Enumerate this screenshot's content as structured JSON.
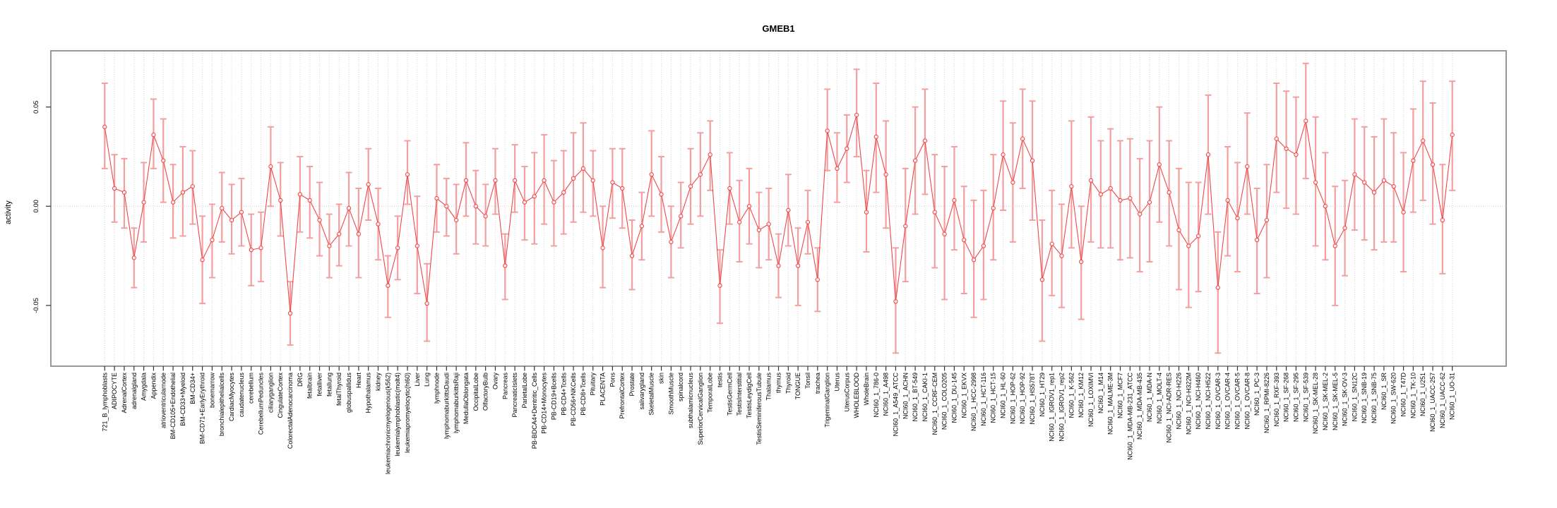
{
  "chart_data": {
    "type": "line",
    "subtype": "error-bar-profile",
    "title": "GMEB1",
    "xlabel": "",
    "ylabel": "activity",
    "ylim": [
      -0.081,
      0.078
    ],
    "yticks": [
      {
        "label": "0.05",
        "value": 0.05
      },
      {
        "label": "0.00",
        "value": 0.0
      },
      {
        "label": "-0.05",
        "value": -0.05
      }
    ],
    "legend": "none",
    "grid": "vertical dotted gridline per category; dotted horizontal zero line",
    "colors": {
      "line": "#ee4747",
      "marker": "#ee4747",
      "error_bar": "#f49f9f",
      "grid": "#d6d6d6",
      "zero_line": "#cfcfcf",
      "frame": "#7f7f7f",
      "tick": "#333333",
      "text": "#000000",
      "background": "#ffffff"
    },
    "points": [
      {
        "label": "721_B_lymphoblasts",
        "value": 0.04,
        "lo": 0.019,
        "hi": 0.062
      },
      {
        "label": "ADIPOCYTE",
        "value": 0.009,
        "lo": -0.008,
        "hi": 0.026
      },
      {
        "label": "AdrenalCortex",
        "value": 0.007,
        "lo": -0.011,
        "hi": 0.024
      },
      {
        "label": "adrenalgland",
        "value": -0.026,
        "lo": -0.041,
        "hi": -0.011
      },
      {
        "label": "Amygdala",
        "value": 0.002,
        "lo": -0.018,
        "hi": 0.022
      },
      {
        "label": "Appendix",
        "value": 0.036,
        "lo": 0.019,
        "hi": 0.054
      },
      {
        "label": "atrioventricularnode",
        "value": 0.023,
        "lo": 0.002,
        "hi": 0.044
      },
      {
        "label": "BM-CD105+Endothelial",
        "value": 0.002,
        "lo": -0.016,
        "hi": 0.021
      },
      {
        "label": "BM-CD33+Myeloid",
        "value": 0.007,
        "lo": -0.015,
        "hi": 0.03
      },
      {
        "label": "BM-CD34+",
        "value": 0.01,
        "lo": -0.009,
        "hi": 0.028
      },
      {
        "label": "BM-CD71+EarlyErythroid",
        "value": -0.027,
        "lo": -0.049,
        "hi": -0.005
      },
      {
        "label": "bonemarrow",
        "value": -0.017,
        "lo": -0.036,
        "hi": 0.001
      },
      {
        "label": "bronchialepithelialcells",
        "value": -0.001,
        "lo": -0.018,
        "hi": 0.017
      },
      {
        "label": "CardiacMyocytes",
        "value": -0.007,
        "lo": -0.024,
        "hi": 0.011
      },
      {
        "label": "caudatenucleus",
        "value": -0.003,
        "lo": -0.02,
        "hi": 0.014
      },
      {
        "label": "cerebellum",
        "value": -0.022,
        "lo": -0.04,
        "hi": -0.004
      },
      {
        "label": "CerebellumPeduncles",
        "value": -0.021,
        "lo": -0.038,
        "hi": -0.003
      },
      {
        "label": "ciliaryganglion",
        "value": 0.02,
        "lo": 0.0,
        "hi": 0.04
      },
      {
        "label": "CingulateCortex",
        "value": 0.003,
        "lo": -0.015,
        "hi": 0.022
      },
      {
        "label": "ColorectalAdenocarcinoma",
        "value": -0.054,
        "lo": -0.07,
        "hi": -0.038
      },
      {
        "label": "DRG",
        "value": 0.006,
        "lo": -0.013,
        "hi": 0.025
      },
      {
        "label": "fetalbrain",
        "value": 0.003,
        "lo": -0.016,
        "hi": 0.02
      },
      {
        "label": "fetalliver",
        "value": -0.007,
        "lo": -0.025,
        "hi": 0.012
      },
      {
        "label": "fetallung",
        "value": -0.02,
        "lo": -0.036,
        "hi": -0.004
      },
      {
        "label": "fetalThyroid",
        "value": -0.014,
        "lo": -0.03,
        "hi": 0.001
      },
      {
        "label": "globuspallidus",
        "value": -0.001,
        "lo": -0.02,
        "hi": 0.017
      },
      {
        "label": "Heart",
        "value": -0.014,
        "lo": -0.036,
        "hi": 0.009
      },
      {
        "label": "Hypothalamus",
        "value": 0.011,
        "lo": -0.007,
        "hi": 0.029
      },
      {
        "label": "kidney",
        "value": -0.009,
        "lo": -0.027,
        "hi": 0.009
      },
      {
        "label": "leukemiachronicmyelogenous(k562)",
        "value": -0.04,
        "lo": -0.056,
        "hi": -0.025
      },
      {
        "label": "leukemialymphoblastic(molt4)",
        "value": -0.021,
        "lo": -0.037,
        "hi": -0.005
      },
      {
        "label": "leukemiapromyelocytic(hl60)",
        "value": 0.016,
        "lo": 0.001,
        "hi": 0.033
      },
      {
        "label": "Liver",
        "value": -0.02,
        "lo": -0.044,
        "hi": 0.005
      },
      {
        "label": "Lung",
        "value": -0.049,
        "lo": -0.068,
        "hi": -0.029
      },
      {
        "label": "lymphnode",
        "value": 0.004,
        "lo": -0.013,
        "hi": 0.021
      },
      {
        "label": "lymphomaburkittsDaudi",
        "value": 0.0,
        "lo": -0.015,
        "hi": 0.014
      },
      {
        "label": "lymphomaburkittsRaji",
        "value": -0.007,
        "lo": -0.024,
        "hi": 0.011
      },
      {
        "label": "MedullaOblongata",
        "value": 0.013,
        "lo": -0.005,
        "hi": 0.032
      },
      {
        "label": "OccipitalLobe",
        "value": 0.0,
        "lo": -0.019,
        "hi": 0.018
      },
      {
        "label": "OlfactoryBulb",
        "value": -0.005,
        "lo": -0.02,
        "hi": 0.011
      },
      {
        "label": "Ovary",
        "value": 0.013,
        "lo": -0.004,
        "hi": 0.029
      },
      {
        "label": "Pancreas",
        "value": -0.03,
        "lo": -0.047,
        "hi": -0.014
      },
      {
        "label": "PancreaticIslets",
        "value": 0.013,
        "lo": -0.003,
        "hi": 0.031
      },
      {
        "label": "ParietalLobe",
        "value": 0.002,
        "lo": -0.017,
        "hi": 0.02
      },
      {
        "label": "PB-BDCA4+Dentritic_Cells",
        "value": 0.005,
        "lo": -0.019,
        "hi": 0.027
      },
      {
        "label": "PB-CD14+Monocytes",
        "value": 0.013,
        "lo": -0.009,
        "hi": 0.036
      },
      {
        "label": "PB-CD19+Bcells",
        "value": 0.002,
        "lo": -0.02,
        "hi": 0.023
      },
      {
        "label": "PB-CD4+Tcells",
        "value": 0.007,
        "lo": -0.014,
        "hi": 0.028
      },
      {
        "label": "PB-CD56+NKCells",
        "value": 0.014,
        "lo": -0.008,
        "hi": 0.037
      },
      {
        "label": "PB-CD8+Tcells",
        "value": 0.019,
        "lo": -0.003,
        "hi": 0.042
      },
      {
        "label": "Pituitary",
        "value": 0.013,
        "lo": -0.005,
        "hi": 0.028
      },
      {
        "label": "PLACENTA",
        "value": -0.021,
        "lo": -0.041,
        "hi": 0.0
      },
      {
        "label": "Pons",
        "value": 0.012,
        "lo": -0.006,
        "hi": 0.029
      },
      {
        "label": "PrefrontalCortex",
        "value": 0.009,
        "lo": -0.011,
        "hi": 0.029
      },
      {
        "label": "Prostate",
        "value": -0.025,
        "lo": -0.042,
        "hi": -0.007
      },
      {
        "label": "salivarygland",
        "value": -0.01,
        "lo": -0.027,
        "hi": 0.007
      },
      {
        "label": "SkeletalMuscle",
        "value": 0.016,
        "lo": -0.005,
        "hi": 0.038
      },
      {
        "label": "skin",
        "value": 0.006,
        "lo": -0.013,
        "hi": 0.025
      },
      {
        "label": "SmoothMuscle",
        "value": -0.018,
        "lo": -0.036,
        "hi": 0.0
      },
      {
        "label": "spinalcord",
        "value": -0.005,
        "lo": -0.021,
        "hi": 0.012
      },
      {
        "label": "subthalamicnucleus",
        "value": 0.01,
        "lo": -0.009,
        "hi": 0.029
      },
      {
        "label": "SuperiorCervicalGanglion",
        "value": 0.016,
        "lo": -0.005,
        "hi": 0.037
      },
      {
        "label": "TemporalLobe",
        "value": 0.026,
        "lo": 0.008,
        "hi": 0.043
      },
      {
        "label": "testis",
        "value": -0.04,
        "lo": -0.059,
        "hi": -0.022
      },
      {
        "label": "TestisGermCell",
        "value": 0.009,
        "lo": -0.009,
        "hi": 0.027
      },
      {
        "label": "TestisInterstitial",
        "value": -0.008,
        "lo": -0.028,
        "hi": 0.013
      },
      {
        "label": "TestisLeydigCell",
        "value": 0.0,
        "lo": -0.019,
        "hi": 0.019
      },
      {
        "label": "TestisSeminiferousTubule",
        "value": -0.012,
        "lo": -0.031,
        "hi": 0.007
      },
      {
        "label": "Thalamus",
        "value": -0.009,
        "lo": -0.027,
        "hi": 0.009
      },
      {
        "label": "thymus",
        "value": -0.03,
        "lo": -0.046,
        "hi": -0.014
      },
      {
        "label": "Thyroid",
        "value": -0.002,
        "lo": -0.02,
        "hi": 0.016
      },
      {
        "label": "TONGUE",
        "value": -0.03,
        "lo": -0.05,
        "hi": -0.011
      },
      {
        "label": "Tonsil",
        "value": -0.008,
        "lo": -0.024,
        "hi": 0.008
      },
      {
        "label": "trachea",
        "value": -0.037,
        "lo": -0.053,
        "hi": -0.021
      },
      {
        "label": "TrigeminalGanglion",
        "value": 0.038,
        "lo": 0.018,
        "hi": 0.059
      },
      {
        "label": "Uterus",
        "value": 0.019,
        "lo": 0.002,
        "hi": 0.037
      },
      {
        "label": "UterusCorpus",
        "value": 0.029,
        "lo": 0.012,
        "hi": 0.046
      },
      {
        "label": "WHOLEBLOOD",
        "value": 0.046,
        "lo": 0.025,
        "hi": 0.069
      },
      {
        "label": "WholeBrain",
        "value": -0.003,
        "lo": -0.023,
        "hi": 0.018
      },
      {
        "label": "NCI60_1_786-0",
        "value": 0.035,
        "lo": 0.007,
        "hi": 0.062
      },
      {
        "label": "NCI60_1_A498",
        "value": 0.016,
        "lo": -0.011,
        "hi": 0.043
      },
      {
        "label": "NCI60_1_A549_ATCC",
        "value": -0.048,
        "lo": -0.074,
        "hi": -0.021
      },
      {
        "label": "NCI60_1_ACHN",
        "value": -0.01,
        "lo": -0.038,
        "hi": 0.019
      },
      {
        "label": "NCI60_1_BT-549",
        "value": 0.023,
        "lo": -0.004,
        "hi": 0.05
      },
      {
        "label": "NCI60_1_CAKI-1",
        "value": 0.033,
        "lo": 0.006,
        "hi": 0.059
      },
      {
        "label": "NCI60_1_CCRF-CEM",
        "value": -0.003,
        "lo": -0.031,
        "hi": 0.026
      },
      {
        "label": "NCI60_1_COLO205",
        "value": -0.014,
        "lo": -0.047,
        "hi": 0.02
      },
      {
        "label": "NCI60_1_DU-145",
        "value": 0.003,
        "lo": -0.022,
        "hi": 0.03
      },
      {
        "label": "NCI60_1_EKVX",
        "value": -0.017,
        "lo": -0.044,
        "hi": 0.01
      },
      {
        "label": "NCI60_1_HCC-2998",
        "value": -0.027,
        "lo": -0.056,
        "hi": 0.003
      },
      {
        "label": "NCI60_1_HCT-116",
        "value": -0.02,
        "lo": -0.047,
        "hi": 0.008
      },
      {
        "label": "NCI60_1_HCT-15",
        "value": -0.001,
        "lo": -0.027,
        "hi": 0.026
      },
      {
        "label": "NCI60_1_HL-60",
        "value": 0.026,
        "lo": -0.002,
        "hi": 0.053
      },
      {
        "label": "NCI60_1_HOP-62",
        "value": 0.012,
        "lo": -0.018,
        "hi": 0.042
      },
      {
        "label": "NCI60_1_HOP-92",
        "value": 0.034,
        "lo": 0.009,
        "hi": 0.059
      },
      {
        "label": "NCI60_1_HS578T",
        "value": 0.023,
        "lo": -0.007,
        "hi": 0.053
      },
      {
        "label": "NCI60_1_HT29",
        "value": -0.037,
        "lo": -0.068,
        "hi": -0.007
      },
      {
        "label": "NCI60_1_IGROV1_rep1",
        "value": -0.019,
        "lo": -0.045,
        "hi": 0.008
      },
      {
        "label": "NCI60_1_IGROV1_rep2",
        "value": -0.025,
        "lo": -0.051,
        "hi": 0.001
      },
      {
        "label": "NCI60_1_K-562",
        "value": 0.01,
        "lo": -0.021,
        "hi": 0.043
      },
      {
        "label": "NCI60_1_KM12",
        "value": -0.028,
        "lo": -0.057,
        "hi": 0.0
      },
      {
        "label": "NCI60_1_LOXIMVI",
        "value": 0.013,
        "lo": -0.018,
        "hi": 0.045
      },
      {
        "label": "NCI60_1_M14",
        "value": 0.006,
        "lo": -0.021,
        "hi": 0.033
      },
      {
        "label": "NCI60_1_MALME-3M",
        "value": 0.009,
        "lo": -0.021,
        "hi": 0.039
      },
      {
        "label": "NCI60_1_MCF7",
        "value": 0.003,
        "lo": -0.027,
        "hi": 0.033
      },
      {
        "label": "NCI60_1_MDA-MB-231_ATCC",
        "value": 0.004,
        "lo": -0.026,
        "hi": 0.034
      },
      {
        "label": "NCI60_1_MDA-MB-435",
        "value": -0.004,
        "lo": -0.033,
        "hi": 0.024
      },
      {
        "label": "NCI60_1_MDA-N",
        "value": 0.002,
        "lo": -0.028,
        "hi": 0.033
      },
      {
        "label": "NCI60_1_MOLT-4",
        "value": 0.021,
        "lo": -0.008,
        "hi": 0.05
      },
      {
        "label": "NCI60_1_NCI-ADR-RES",
        "value": 0.007,
        "lo": -0.02,
        "hi": 0.033
      },
      {
        "label": "NCI60_1_NCI-H226",
        "value": -0.012,
        "lo": -0.042,
        "hi": 0.019
      },
      {
        "label": "NCI60_1_NCI-H322M",
        "value": -0.02,
        "lo": -0.051,
        "hi": 0.012
      },
      {
        "label": "NCI60_1_NCI-H460",
        "value": -0.015,
        "lo": -0.043,
        "hi": 0.012
      },
      {
        "label": "NCI60_1_NCI-H522",
        "value": 0.026,
        "lo": -0.004,
        "hi": 0.056
      },
      {
        "label": "NCI60_1_OVCAR-3",
        "value": -0.041,
        "lo": -0.074,
        "hi": -0.013
      },
      {
        "label": "NCI60_1_OVCAR-4",
        "value": 0.003,
        "lo": -0.025,
        "hi": 0.03
      },
      {
        "label": "NCI60_1_OVCAR-5",
        "value": -0.006,
        "lo": -0.033,
        "hi": 0.022
      },
      {
        "label": "NCI60_1_OVCAR-8",
        "value": 0.02,
        "lo": -0.004,
        "hi": 0.047
      },
      {
        "label": "NCI60_1_PC-3",
        "value": -0.017,
        "lo": -0.044,
        "hi": 0.009
      },
      {
        "label": "NCI60_1_RPMI-8226",
        "value": -0.007,
        "lo": -0.036,
        "hi": 0.021
      },
      {
        "label": "NCI60_1_RXF-393",
        "value": 0.034,
        "lo": 0.007,
        "hi": 0.062
      },
      {
        "label": "NCI60_1_SF-268",
        "value": 0.029,
        "lo": -0.001,
        "hi": 0.058
      },
      {
        "label": "NCI60_1_SF-295",
        "value": 0.026,
        "lo": -0.004,
        "hi": 0.055
      },
      {
        "label": "NCI60_1_SF-539",
        "value": 0.043,
        "lo": 0.014,
        "hi": 0.072
      },
      {
        "label": "NCI60_1_SK-MEL-28",
        "value": 0.012,
        "lo": -0.02,
        "hi": 0.045
      },
      {
        "label": "NCI60_1_SK-MEL-2",
        "value": 0.0,
        "lo": -0.027,
        "hi": 0.027
      },
      {
        "label": "NCI60_1_SK-MEL-5",
        "value": -0.02,
        "lo": -0.05,
        "hi": 0.01
      },
      {
        "label": "NCI60_1_SK-OV-3",
        "value": -0.011,
        "lo": -0.035,
        "hi": 0.013
      },
      {
        "label": "NCI60_1_SN12C",
        "value": 0.016,
        "lo": -0.012,
        "hi": 0.044
      },
      {
        "label": "NCI60_1_SNB-19",
        "value": 0.012,
        "lo": -0.017,
        "hi": 0.04
      },
      {
        "label": "NCI60_1_SNB-75",
        "value": 0.007,
        "lo": -0.022,
        "hi": 0.035
      },
      {
        "label": "NCI60_1_SR",
        "value": 0.013,
        "lo": -0.018,
        "hi": 0.044
      },
      {
        "label": "NCI60_1_SW-620",
        "value": 0.01,
        "lo": -0.018,
        "hi": 0.037
      },
      {
        "label": "NCI60_1_T47D",
        "value": -0.003,
        "lo": -0.033,
        "hi": 0.027
      },
      {
        "label": "NCI60_1_TK-10",
        "value": 0.023,
        "lo": -0.003,
        "hi": 0.049
      },
      {
        "label": "NCI60_1_U251",
        "value": 0.033,
        "lo": 0.003,
        "hi": 0.063
      },
      {
        "label": "NCI60_1_UACC-257",
        "value": 0.021,
        "lo": -0.009,
        "hi": 0.052
      },
      {
        "label": "NCI60_1_UACC-62",
        "value": -0.007,
        "lo": -0.034,
        "hi": 0.021
      },
      {
        "label": "NCI60_1_UO-31",
        "value": 0.036,
        "lo": 0.008,
        "hi": 0.063
      }
    ]
  }
}
